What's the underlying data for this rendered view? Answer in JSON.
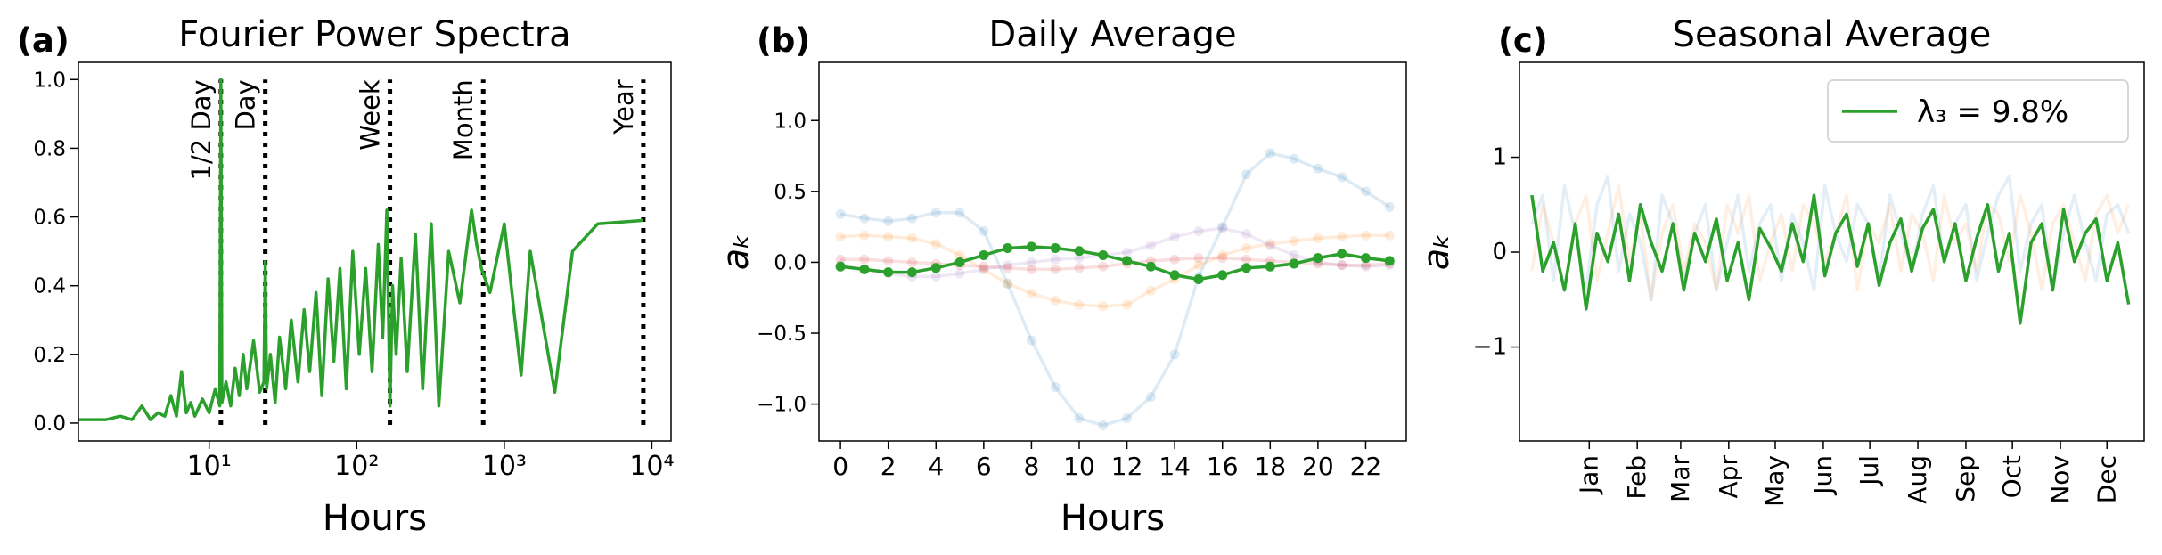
{
  "chart_data": [
    {
      "type": "line",
      "panel_label": "(a)",
      "title": "Fourier Power Spectra",
      "xlabel": "Hours",
      "xscale": "log",
      "xlim": [
        1.3,
        13500
      ],
      "ylim": [
        -0.052,
        1.05
      ],
      "xticks": [
        {
          "value": 10,
          "label": "10¹"
        },
        {
          "value": 100,
          "label": "10²"
        },
        {
          "value": 1000,
          "label": "10³"
        },
        {
          "value": 10000,
          "label": "10⁴"
        }
      ],
      "yticks": [
        {
          "value": 0,
          "label": "0.0"
        },
        0.2,
        0.4,
        0.6,
        0.8,
        {
          "value": 1,
          "label": "1.0"
        }
      ],
      "x": [
        1.3,
        2,
        2.5,
        3,
        3.5,
        4,
        4.5,
        5,
        5.5,
        6,
        6.5,
        7,
        7.5,
        8,
        9,
        10,
        11,
        11.8,
        12,
        12.2,
        13,
        14,
        15,
        16,
        17,
        18,
        20,
        22,
        23.5,
        24,
        24.5,
        26,
        28,
        30,
        33,
        36,
        40,
        44,
        48,
        53,
        58,
        64,
        70,
        77,
        85,
        94,
        104,
        115,
        127,
        140,
        150,
        160,
        168,
        175,
        185,
        200,
        220,
        250,
        280,
        320,
        360,
        420,
        500,
        600,
        650,
        700,
        800,
        1000,
        1300,
        1500,
        2200,
        2900,
        4300,
        8760
      ],
      "series": [
        {
          "color": "#2ca02c",
          "opacity": 1,
          "values": [
            0.01,
            0.01,
            0.02,
            0.01,
            0.05,
            0.01,
            0.03,
            0.02,
            0.08,
            0.02,
            0.15,
            0.03,
            0.06,
            0.02,
            0.07,
            0.03,
            0.1,
            0.05,
            1.0,
            0.06,
            0.12,
            0.05,
            0.16,
            0.08,
            0.2,
            0.1,
            0.24,
            0.09,
            0.12,
            0.47,
            0.1,
            0.2,
            0.06,
            0.25,
            0.1,
            0.3,
            0.12,
            0.33,
            0.15,
            0.38,
            0.08,
            0.42,
            0.18,
            0.45,
            0.1,
            0.5,
            0.2,
            0.45,
            0.15,
            0.52,
            0.25,
            0.62,
            0.05,
            0.4,
            0.2,
            0.48,
            0.15,
            0.55,
            0.1,
            0.58,
            0.05,
            0.5,
            0.35,
            0.62,
            0.52,
            0.45,
            0.38,
            0.58,
            0.14,
            0.5,
            0.09,
            0.5,
            0.58,
            0.59
          ]
        }
      ],
      "annotations": [
        {
          "x": 12,
          "text": "1/2 Day"
        },
        {
          "x": 24,
          "text": "Day"
        },
        {
          "x": 168,
          "text": "Week"
        },
        {
          "x": 720,
          "text": "Month"
        },
        {
          "x": 8760,
          "text": "Year"
        }
      ]
    },
    {
      "type": "line",
      "panel_label": "(b)",
      "title": "Daily Average",
      "xlabel": "Hours",
      "ylabel": "aₖ",
      "markers": true,
      "xlim": [
        -0.9,
        23.7
      ],
      "ylim": [
        -1.26,
        1.41
      ],
      "xticks": [
        0,
        2,
        4,
        6,
        8,
        10,
        12,
        14,
        16,
        18,
        20,
        22
      ],
      "yticks": [
        {
          "value": -1,
          "label": "−1.0"
        },
        {
          "value": -0.5,
          "label": "−0.5"
        },
        {
          "value": 0,
          "label": "0.0"
        },
        0.5,
        {
          "value": 1,
          "label": "1.0"
        }
      ],
      "x": [
        0,
        1,
        2,
        3,
        4,
        5,
        6,
        7,
        8,
        9,
        10,
        11,
        12,
        13,
        14,
        15,
        16,
        17,
        18,
        19,
        20,
        21,
        22,
        23
      ],
      "series": [
        {
          "color": "#1f77b4",
          "opacity": 0.15,
          "values": [
            0.34,
            0.31,
            0.29,
            0.31,
            0.35,
            0.35,
            0.22,
            -0.15,
            -0.55,
            -0.88,
            -1.1,
            -1.15,
            -1.1,
            -0.95,
            -0.65,
            -0.1,
            0.25,
            0.62,
            0.77,
            0.73,
            0.66,
            0.6,
            0.5,
            0.39
          ]
        },
        {
          "color": "#ff7f0e",
          "opacity": 0.15,
          "values": [
            0.18,
            0.19,
            0.18,
            0.17,
            0.13,
            0.05,
            -0.05,
            -0.15,
            -0.22,
            -0.27,
            -0.3,
            -0.31,
            -0.3,
            -0.2,
            -0.12,
            -0.02,
            0.05,
            0.1,
            0.13,
            0.15,
            0.17,
            0.18,
            0.19,
            0.19
          ]
        },
        {
          "color": "#9467bd",
          "opacity": 0.15,
          "values": [
            -0.02,
            -0.05,
            -0.08,
            -0.1,
            -0.1,
            -0.08,
            -0.05,
            -0.02,
            0,
            0.02,
            0.03,
            0.05,
            0.07,
            0.12,
            0.18,
            0.22,
            0.24,
            0.2,
            0.12,
            0.05,
            0,
            -0.02,
            -0.03,
            -0.02
          ]
        },
        {
          "color": "#d62728",
          "opacity": 0.15,
          "values": [
            0.02,
            0.02,
            0.01,
            0,
            -0.01,
            -0.02,
            -0.03,
            -0.04,
            -0.05,
            -0.05,
            -0.04,
            -0.03,
            -0.01,
            0.01,
            0.02,
            0.03,
            0.03,
            0.02,
            0.01,
            0,
            -0.01,
            -0.02,
            -0.02,
            -0.01
          ]
        },
        {
          "color": "#2ca02c",
          "opacity": 1,
          "values": [
            -0.03,
            -0.05,
            -0.07,
            -0.07,
            -0.04,
            0,
            0.05,
            0.1,
            0.11,
            0.1,
            0.08,
            0.05,
            0.01,
            -0.03,
            -0.09,
            -0.12,
            -0.09,
            -0.04,
            -0.03,
            -0.01,
            0.03,
            0.06,
            0.03,
            0.01
          ]
        }
      ]
    },
    {
      "type": "line",
      "panel_label": "(c)",
      "title": "Seasonal Average",
      "ylabel": "aₖ",
      "legend": "upper right",
      "xlim": [
        -8,
        395
      ],
      "ylim": [
        -1.99,
        2.0
      ],
      "xticks": [
        {
          "value": 37,
          "label": "Jan"
        },
        {
          "value": 68,
          "label": "Feb"
        },
        {
          "value": 96,
          "label": "Mar"
        },
        {
          "value": 127,
          "label": "Apr"
        },
        {
          "value": 157,
          "label": "May"
        },
        {
          "value": 188,
          "label": "Jun"
        },
        {
          "value": 218,
          "label": "Jul"
        },
        {
          "value": 249,
          "label": "Aug"
        },
        {
          "value": 280,
          "label": "Sep"
        },
        {
          "value": 310,
          "label": "Oct"
        },
        {
          "value": 341,
          "label": "Nov"
        },
        {
          "value": 371,
          "label": "Dec"
        }
      ],
      "yticks": [
        {
          "value": -1,
          "label": "−1"
        },
        0,
        1
      ],
      "x": [
        0,
        7,
        14,
        21,
        28,
        35,
        42,
        49,
        56,
        63,
        70,
        77,
        84,
        91,
        98,
        105,
        112,
        119,
        126,
        133,
        140,
        147,
        154,
        161,
        168,
        175,
        182,
        189,
        196,
        203,
        210,
        217,
        224,
        231,
        238,
        245,
        252,
        259,
        266,
        273,
        280,
        287,
        294,
        301,
        308,
        315,
        322,
        329,
        336,
        343,
        350,
        357,
        364,
        371,
        378,
        385
      ],
      "series": [
        {
          "color": "#1f77b4",
          "opacity": 0.12,
          "values": [
            0.3,
            0.6,
            -0.3,
            0.7,
            0.2,
            -0.4,
            0.5,
            0.8,
            -0.2,
            0.4,
            0.1,
            -0.5,
            0.6,
            0.3,
            -0.3,
            0.2,
            0.5,
            -0.4,
            0.1,
            0.6,
            -0.2,
            0.3,
            0.5,
            -0.3,
            0.4,
            0.1,
            -0.4,
            0.7,
            0.2,
            -0.1,
            0.5,
            0.3,
            -0.3,
            0.6,
            0.2,
            -0.2,
            0.4,
            0.7,
            -0.1,
            0.3,
            0.5,
            -0.3,
            0.2,
            0.6,
            0.8,
            -0.2,
            0.3,
            0.5,
            -0.4,
            0.2,
            0.6,
            0.1,
            -0.3,
            0.4,
            0.5,
            0.2
          ]
        },
        {
          "color": "#ff7f0e",
          "opacity": 0.12,
          "values": [
            -0.2,
            0.5,
            0.1,
            -0.4,
            0.3,
            0.6,
            -0.3,
            0.2,
            0.7,
            -0.1,
            0.4,
            -0.5,
            0.2,
            0.5,
            -0.2,
            0.3,
            0.1,
            -0.4,
            0.5,
            0.2,
            0.6,
            -0.3,
            0.1,
            0.4,
            -0.2,
            0.5,
            0.3,
            -0.1,
            0.2,
            0.6,
            -0.4,
            0.3,
            0.1,
            0.5,
            -0.2,
            0.4,
            0.2,
            -0.3,
            0.6,
            0.1,
            0.3,
            -0.2,
            0.5,
            0.4,
            -0.1,
            0.6,
            0.2,
            -0.4,
            0.3,
            0.5,
            0.1,
            -0.3,
            0.4,
            0.6,
            0.2,
            0.5
          ]
        },
        {
          "name": "λ₃ = 9.8%",
          "color": "#2ca02c",
          "opacity": 1,
          "values": [
            0.6,
            -0.2,
            0.1,
            -0.4,
            0.3,
            -0.6,
            0.2,
            -0.1,
            0.4,
            -0.3,
            0.5,
            0.1,
            -0.2,
            0.3,
            -0.4,
            0.2,
            -0.1,
            0.35,
            -0.3,
            0.1,
            -0.5,
            0.25,
            0.05,
            -0.2,
            0.3,
            -0.1,
            0.6,
            -0.25,
            0.2,
            0.4,
            -0.15,
            0.3,
            -0.35,
            0.1,
            0.35,
            -0.2,
            0.25,
            0.45,
            -0.1,
            0.3,
            -0.3,
            0.15,
            0.5,
            -0.2,
            0.2,
            -0.75,
            0.1,
            0.3,
            -0.4,
            0.45,
            -0.1,
            0.2,
            0.35,
            -0.3,
            0.1,
            -0.55
          ]
        }
      ]
    }
  ]
}
